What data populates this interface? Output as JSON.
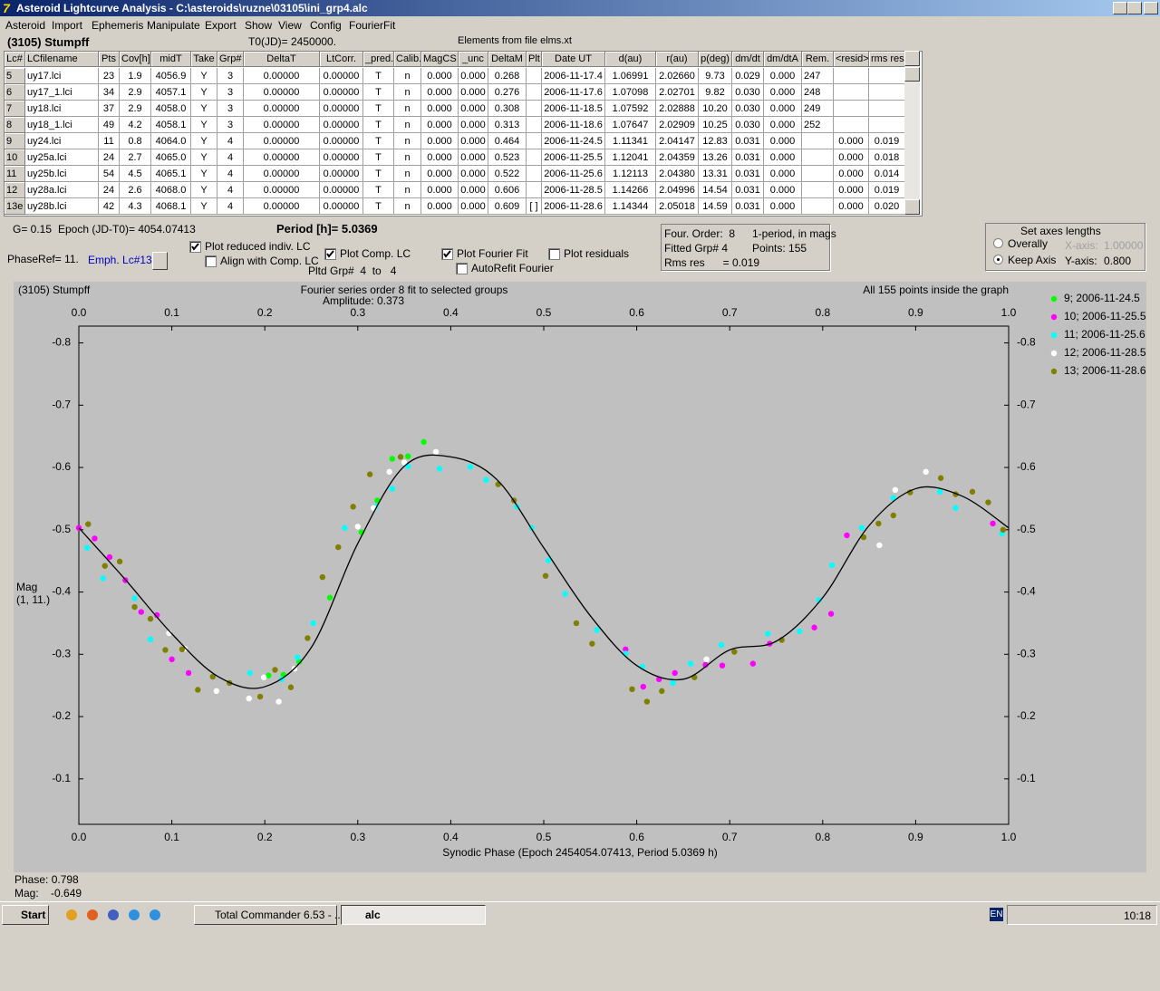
{
  "window": {
    "title": "Asteroid Lightcurve Analysis - C:\\asteroids\\ruzne\\03105\\ini_grp4.alc"
  },
  "menu": [
    "Asteroid",
    "Import",
    "Ephemeris",
    "Manipulate",
    "Export",
    "Show",
    "View",
    "Config",
    "FourierFit"
  ],
  "header": {
    "object": "(3105) Stumpff",
    "t0": "T0(JD)= 2450000.",
    "elements": "Elements from file elms.xt"
  },
  "table": {
    "columns": [
      "Lc#",
      "LCfilename",
      "Pts",
      "Cov[h]",
      "midT",
      "Take",
      "Grp#",
      "DeltaT",
      "LtCorr.",
      "_pred.",
      "Calib.",
      "MagCS",
      "_unc",
      "DeltaM",
      "Plt",
      "Date UT",
      "d(au)",
      "r(au)",
      "p(deg)",
      "dm/dt",
      "dm/dtA",
      "Rem.",
      "<resid>",
      "rms res"
    ],
    "rows": [
      [
        "5",
        "uy17.lci",
        "23",
        "1.9",
        "4056.9",
        "Y",
        "3",
        "0.00000",
        "0.00000",
        "T",
        "n",
        "0.000",
        "0.000",
        "0.268",
        null,
        "2006-11-17.4",
        "1.06991",
        "2.02660",
        "9.73",
        "0.029",
        "0.000",
        "247",
        null,
        null
      ],
      [
        "6",
        "uy17_1.lci",
        "34",
        "2.9",
        "4057.1",
        "Y",
        "3",
        "0.00000",
        "0.00000",
        "T",
        "n",
        "0.000",
        "0.000",
        "0.276",
        null,
        "2006-11-17.6",
        "1.07098",
        "2.02701",
        "9.82",
        "0.030",
        "0.000",
        "248",
        null,
        null
      ],
      [
        "7",
        "uy18.lci",
        "37",
        "2.9",
        "4058.0",
        "Y",
        "3",
        "0.00000",
        "0.00000",
        "T",
        "n",
        "0.000",
        "0.000",
        "0.308",
        null,
        "2006-11-18.5",
        "1.07592",
        "2.02888",
        "10.20",
        "0.030",
        "0.000",
        "249",
        null,
        null
      ],
      [
        "8",
        "uy18_1.lci",
        "49",
        "4.2",
        "4058.1",
        "Y",
        "3",
        "0.00000",
        "0.00000",
        "T",
        "n",
        "0.000",
        "0.000",
        "0.313",
        null,
        "2006-11-18.6",
        "1.07647",
        "2.02909",
        "10.25",
        "0.030",
        "0.000",
        "252",
        null,
        null
      ],
      [
        "9",
        "uy24.lci",
        "11",
        "0.8",
        "4064.0",
        "Y",
        "4",
        "0.00000",
        "0.00000",
        "T",
        "n",
        "0.000",
        "0.000",
        "0.464",
        null,
        "2006-11-24.5",
        "1.11341",
        "2.04147",
        "12.83",
        "0.031",
        "0.000",
        null,
        "0.000",
        "0.019"
      ],
      [
        "10",
        "uy25a.lci",
        "24",
        "2.7",
        "4065.0",
        "Y",
        "4",
        "0.00000",
        "0.00000",
        "T",
        "n",
        "0.000",
        "0.000",
        "0.523",
        null,
        "2006-11-25.5",
        "1.12041",
        "2.04359",
        "13.26",
        "0.031",
        "0.000",
        null,
        "0.000",
        "0.018"
      ],
      [
        "11",
        "uy25b.lci",
        "54",
        "4.5",
        "4065.1",
        "Y",
        "4",
        "0.00000",
        "0.00000",
        "T",
        "n",
        "0.000",
        "0.000",
        "0.522",
        null,
        "2006-11-25.6",
        "1.12113",
        "2.04380",
        "13.31",
        "0.031",
        "0.000",
        null,
        "0.000",
        "0.014"
      ],
      [
        "12",
        "uy28a.lci",
        "24",
        "2.6",
        "4068.0",
        "Y",
        "4",
        "0.00000",
        "0.00000",
        "T",
        "n",
        "0.000",
        "0.000",
        "0.606",
        null,
        "2006-11-28.5",
        "1.14266",
        "2.04996",
        "14.54",
        "0.031",
        "0.000",
        null,
        "0.000",
        "0.019"
      ],
      [
        "13e",
        "uy28b.lci",
        "42",
        "4.3",
        "4068.1",
        "Y",
        "4",
        "0.00000",
        "0.00000",
        "T",
        "n",
        "0.000",
        "0.000",
        "0.609",
        "[ ]",
        "2006-11-28.6",
        "1.14344",
        "2.05018",
        "14.59",
        "0.031",
        "0.000",
        null,
        "0.000",
        "0.020"
      ]
    ]
  },
  "controls": {
    "g": "G= 0.15",
    "epoch": "Epoch (JD-T0)= 4054.07413",
    "period": "Period [h]= 5.0369",
    "phase_ref": "PhaseRef= 11.",
    "emph": "Emph. Lc#13:",
    "plot_reduced": {
      "label": "Plot reduced indiv. LC",
      "checked": true
    },
    "align": {
      "label": "Align with Comp. LC",
      "checked": false
    },
    "plot_comp": {
      "label": "Plot Comp. LC",
      "checked": true
    },
    "pltd_grp": "Pltd Grp#  4  to   4",
    "plot_fourier": {
      "label": "Plot Fourier Fit",
      "checked": true
    },
    "autorefit": {
      "label": "AutoRefit Fourier",
      "checked": false
    },
    "plot_residuals": {
      "label": "Plot residuals",
      "checked": false
    }
  },
  "fourier_box": {
    "order": "Four. Order:  8",
    "mode": "1-period, in mags",
    "fitted": "Fitted Grp# 4",
    "points": "Points: 155",
    "rms": "Rms res      = 0.019"
  },
  "axes_box": {
    "title": "Set axes lengths",
    "overally": {
      "label": "Overally",
      "selected": false
    },
    "keep": {
      "label": "Keep Axis",
      "selected": true
    },
    "x_label": "X-axis:",
    "x_value": "1.00000",
    "y_label": "Y-axis:",
    "y_value": "0.800"
  },
  "chart_data": {
    "type": "scatter",
    "title": "(3105) Stumpff",
    "subtitle": "Fourier series order 8 fit to selected groups",
    "amplitude": "Amplitude: 0.373",
    "note": "All 155 points inside the graph",
    "xlabel": "Synodic Phase (Epoch 2454054.07413, Period 5.0369 h)",
    "ylabel": "Mag",
    "ylabel_units": "(1, 11.)",
    "xlim": [
      0,
      1
    ],
    "ylim": [
      -0.027,
      -0.827
    ],
    "xticks": [
      {
        "value": 0,
        "label": "0.0"
      },
      0.1,
      0.2,
      0.3,
      0.4,
      0.5,
      0.6,
      0.7,
      0.8,
      0.9,
      {
        "value": 1,
        "label": "1.0"
      }
    ],
    "yticks": [
      -0.1,
      -0.2,
      -0.3,
      -0.4,
      -0.5,
      -0.6,
      -0.7,
      -0.8
    ],
    "legend": "right",
    "series": [
      {
        "name": "9; 2006-11-24.5",
        "color": "#00ff00",
        "x": [
          0.204,
          0.22,
          0.237,
          0.27,
          0.304,
          0.321,
          0.337,
          0.354,
          0.371
        ],
        "values": [
          -0.266,
          -0.267,
          -0.288,
          -0.391,
          -0.496,
          -0.547,
          -0.614,
          -0.618,
          -0.641
        ]
      },
      {
        "name": "10; 2006-11-25.5",
        "color": "#ff00ff",
        "x": [
          0.0,
          0.017,
          0.033,
          0.05,
          0.067,
          0.084,
          0.1,
          0.118,
          0.588,
          0.607,
          0.624,
          0.641,
          0.674,
          0.692,
          0.725,
          0.743,
          0.791,
          0.809,
          0.826,
          0.983
        ],
        "values": [
          -0.503,
          -0.486,
          -0.456,
          -0.419,
          -0.368,
          -0.363,
          -0.292,
          -0.27,
          -0.308,
          -0.248,
          -0.26,
          -0.27,
          -0.283,
          -0.282,
          -0.285,
          -0.317,
          -0.343,
          -0.365,
          -0.491,
          -0.51
        ]
      },
      {
        "name": "11; 2006-11-25.6",
        "color": "#00ffff",
        "x": [
          0.009,
          0.026,
          0.06,
          0.077,
          0.184,
          0.218,
          0.235,
          0.252,
          0.286,
          0.319,
          0.337,
          0.354,
          0.388,
          0.421,
          0.438,
          0.471,
          0.487,
          0.505,
          0.523,
          0.557,
          0.588,
          0.606,
          0.639,
          0.658,
          0.691,
          0.741,
          0.775,
          0.796,
          0.81,
          0.842,
          0.876,
          0.926,
          0.943,
          0.993
        ],
        "values": [
          -0.471,
          -0.422,
          -0.39,
          -0.324,
          -0.27,
          -0.26,
          -0.295,
          -0.35,
          -0.503,
          -0.537,
          -0.566,
          -0.602,
          -0.598,
          -0.601,
          -0.58,
          -0.537,
          -0.503,
          -0.451,
          -0.397,
          -0.339,
          -0.301,
          -0.28,
          -0.254,
          -0.285,
          -0.315,
          -0.333,
          -0.337,
          -0.387,
          -0.443,
          -0.503,
          -0.551,
          -0.561,
          -0.535,
          -0.494
        ]
      },
      {
        "name": "12; 2006-11-28.5",
        "color": "#ffffff",
        "x": [
          0.097,
          0.114,
          0.148,
          0.183,
          0.199,
          0.215,
          0.232,
          0.3,
          0.317,
          0.334,
          0.35,
          0.384,
          0.675,
          0.861,
          0.878,
          0.911
        ],
        "values": [
          -0.334,
          -0.309,
          -0.241,
          -0.229,
          -0.263,
          -0.224,
          -0.277,
          -0.505,
          -0.535,
          -0.593,
          -0.608,
          -0.625,
          -0.292,
          -0.475,
          -0.564,
          -0.593
        ]
      },
      {
        "name": "13; 2006-11-28.6",
        "color": "#808000",
        "x": [
          0.01,
          0.028,
          0.044,
          0.06,
          0.077,
          0.093,
          0.111,
          0.128,
          0.144,
          0.162,
          0.195,
          0.211,
          0.228,
          0.246,
          0.262,
          0.279,
          0.295,
          0.313,
          0.346,
          0.451,
          0.468,
          0.502,
          0.535,
          0.552,
          0.595,
          0.611,
          0.627,
          0.662,
          0.705,
          0.756,
          0.844,
          0.86,
          0.876,
          0.894,
          0.927,
          0.943,
          0.961,
          0.978,
          0.994
        ],
        "values": [
          -0.509,
          -0.442,
          -0.449,
          -0.376,
          -0.357,
          -0.307,
          -0.308,
          -0.243,
          -0.264,
          -0.254,
          -0.232,
          -0.275,
          -0.247,
          -0.326,
          -0.424,
          -0.472,
          -0.537,
          -0.589,
          -0.617,
          -0.573,
          -0.547,
          -0.426,
          -0.35,
          -0.317,
          -0.244,
          -0.224,
          -0.241,
          -0.263,
          -0.304,
          -0.323,
          -0.488,
          -0.51,
          -0.523,
          -0.56,
          -0.583,
          -0.557,
          -0.561,
          -0.544,
          -0.5
        ]
      }
    ],
    "fit": {
      "color": "#000000",
      "x": [
        0.0,
        0.05,
        0.1,
        0.15,
        0.2,
        0.25,
        0.3,
        0.35,
        0.4,
        0.45,
        0.5,
        0.55,
        0.6,
        0.65,
        0.7,
        0.75,
        0.8,
        0.85,
        0.9,
        0.95,
        1.0
      ],
      "values": [
        -0.503,
        -0.42,
        -0.333,
        -0.264,
        -0.248,
        -0.311,
        -0.478,
        -0.602,
        -0.617,
        -0.58,
        -0.471,
        -0.362,
        -0.282,
        -0.26,
        -0.307,
        -0.321,
        -0.391,
        -0.507,
        -0.566,
        -0.554,
        -0.503
      ]
    }
  },
  "status": {
    "phase": "Phase: 0.798",
    "mag": "Mag:    -0.649"
  },
  "taskbar": {
    "start": "Start",
    "tasks": [
      "Total Commander 6.53 - ...",
      "alc"
    ],
    "lang": "EN",
    "clock": "10:18"
  }
}
